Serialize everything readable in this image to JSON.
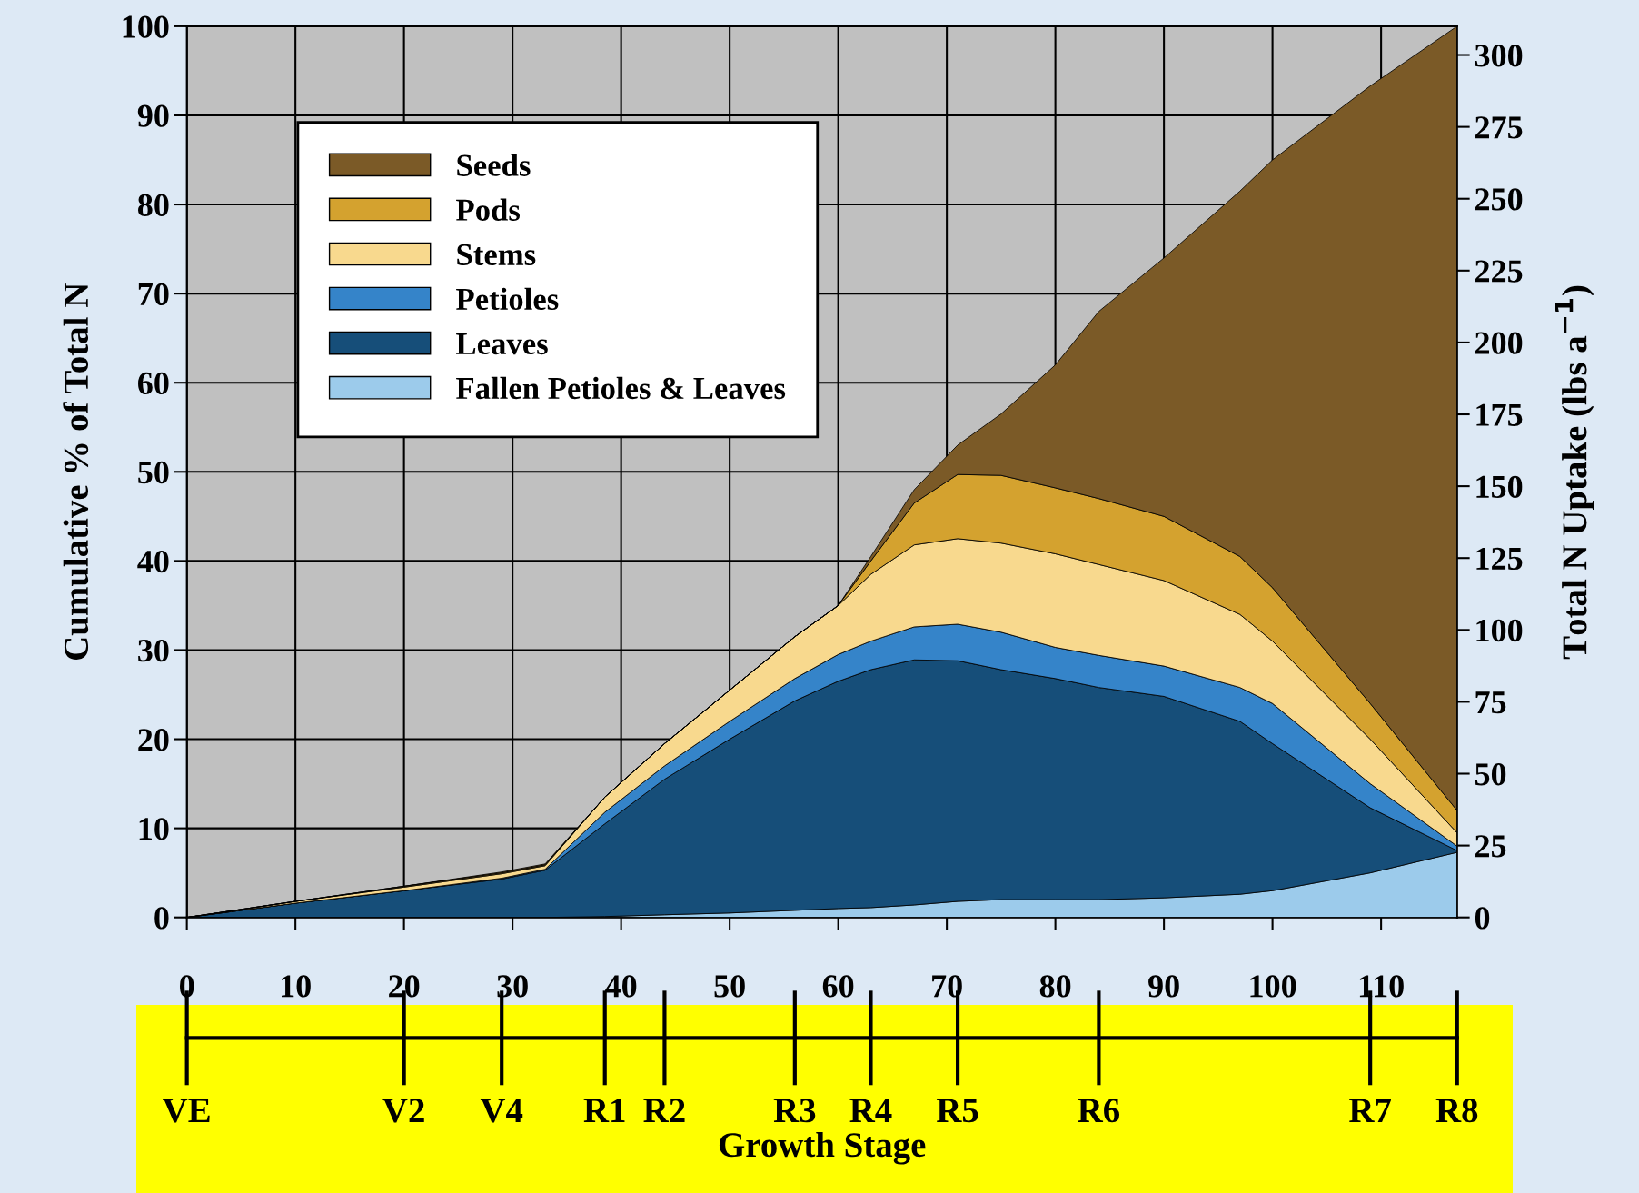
{
  "chart_data": {
    "type": "area",
    "stacked": true,
    "ylabel": "Cumulative % of Total N",
    "y2label": "Total N Uptake (lbs a$^{−1}$)",
    "x": [
      0,
      10,
      20,
      29,
      33,
      38.5,
      44,
      50,
      56,
      60,
      63,
      67,
      71,
      75,
      80,
      84,
      90,
      97,
      100,
      109,
      117
    ],
    "series": [
      {
        "name": "Fallen Petioles & Leaves",
        "color": "#9ccbeb",
        "values": [
          0,
          0,
          0,
          0,
          0,
          0.1,
          0.3,
          0.5,
          0.8,
          1,
          1.1,
          1.4,
          1.8,
          2,
          2,
          2,
          2.2,
          2.6,
          3,
          5,
          7.3
        ]
      },
      {
        "name": "Leaves",
        "color": "#164e79",
        "values": [
          0,
          1.6,
          3,
          4.3,
          5.3,
          10.4,
          15.2,
          19.5,
          23.5,
          25.5,
          26.7,
          27.5,
          27,
          25.8,
          24.8,
          23.8,
          22.6,
          19.4,
          16.5,
          7.3,
          0.2
        ]
      },
      {
        "name": "Petioles",
        "color": "#3584c9",
        "values": [
          0,
          0,
          0,
          0.1,
          0.1,
          1.3,
          1.5,
          2,
          2.5,
          3,
          3.2,
          3.7,
          4.1,
          4.2,
          3.5,
          3.6,
          3.4,
          3.8,
          4.5,
          2.7,
          0.5
        ]
      },
      {
        "name": "Stems",
        "color": "#f8d98e",
        "values": [
          0,
          0.2,
          0.4,
          0.5,
          0.4,
          1.7,
          2.5,
          3.5,
          4.7,
          5.5,
          7.5,
          9.2,
          9.6,
          10,
          10.5,
          10.2,
          9.6,
          8.2,
          7,
          5,
          1.5
        ]
      },
      {
        "name": "Pods",
        "color": "#d4a22f",
        "values": [
          0,
          0,
          0.1,
          0.1,
          0.1,
          0,
          0,
          0,
          0,
          0,
          1.5,
          4.7,
          7.2,
          7.6,
          7.4,
          7.4,
          7.2,
          6.5,
          6,
          4,
          2.5
        ]
      },
      {
        "name": "Seeds",
        "color": "#7b5a27",
        "values": [
          0,
          0,
          0,
          0.1,
          0.1,
          0,
          0,
          0,
          0,
          0,
          0.5,
          1.5,
          3.3,
          6.9,
          13.8,
          21,
          29,
          41,
          48,
          69.3,
          88
        ]
      }
    ],
    "xlim": [
      0,
      117
    ],
    "xticks": [
      0,
      10,
      20,
      30,
      40,
      50,
      60,
      70,
      80,
      90,
      100,
      110
    ],
    "ylim": [
      0,
      100
    ],
    "yticks": [
      0,
      10,
      20,
      30,
      40,
      50,
      60,
      70,
      80,
      90,
      100
    ],
    "y2lim": [
      0,
      310
    ],
    "y2ticks": [
      0,
      25,
      50,
      75,
      100,
      125,
      150,
      175,
      200,
      225,
      250,
      275,
      300
    ],
    "annotations": [
      {
        "text": "VE",
        "x": 0
      },
      {
        "text": "V2",
        "x": 20
      },
      {
        "text": "V4",
        "x": 29
      },
      {
        "text": "R1",
        "x": 38.5
      },
      {
        "text": "R2",
        "x": 44
      },
      {
        "text": "R3",
        "x": 56
      },
      {
        "text": "R4",
        "x": 63
      },
      {
        "text": "R5",
        "x": 71
      },
      {
        "text": "R6",
        "x": 84
      },
      {
        "text": "R7",
        "x": 109
      },
      {
        "text": "R8",
        "x": 117
      },
      "Growth Stage"
    ],
    "grid": true,
    "legend": "top left"
  }
}
